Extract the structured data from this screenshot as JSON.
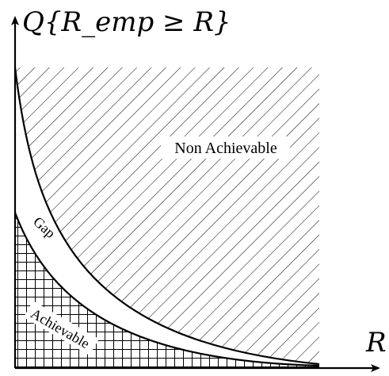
{
  "axes": {
    "y_label": "Q{R_emp ≥ R}",
    "x_label": "R"
  },
  "regions": {
    "upper_label": "Non Achievable",
    "middle_label": "Gap",
    "lower_label": "Achievable"
  },
  "colors": {
    "ink": "#000000",
    "background": "#ffffff"
  }
}
